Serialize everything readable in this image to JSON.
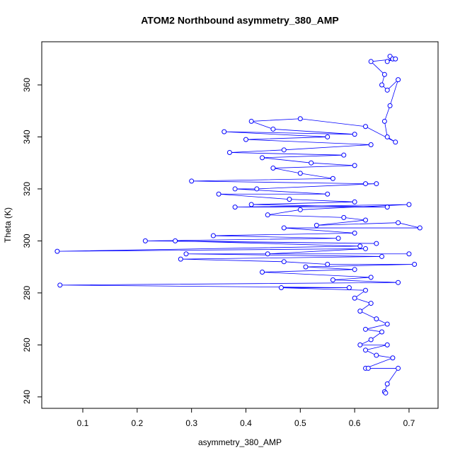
{
  "chart_data": {
    "type": "line",
    "markers": "circle",
    "title": "ATOM2 Northbound asymmetry_380_AMP",
    "x_label": "asymmetry_380_AMP",
    "y_label": "Theta (K)",
    "color": "#0000ff",
    "xlim": [
      0.0245,
      0.7534
    ],
    "ylim": [
      235.6,
      376.6
    ],
    "xticks": [
      0.1,
      0.2,
      0.3,
      0.4,
      0.5,
      0.6,
      0.7
    ],
    "yticks": [
      240,
      260,
      280,
      300,
      320,
      340,
      360
    ],
    "x": [
      0.665,
      0.67,
      0.66,
      0.675,
      0.63,
      0.655,
      0.65,
      0.66,
      0.68,
      0.665,
      0.655,
      0.66,
      0.675,
      0.62,
      0.5,
      0.41,
      0.45,
      0.6,
      0.36,
      0.55,
      0.4,
      0.63,
      0.47,
      0.37,
      0.58,
      0.43,
      0.52,
      0.6,
      0.45,
      0.5,
      0.56,
      0.3,
      0.62,
      0.64,
      0.42,
      0.38,
      0.55,
      0.35,
      0.48,
      0.6,
      0.41,
      0.66,
      0.38,
      0.7,
      0.5,
      0.44,
      0.58,
      0.62,
      0.53,
      0.68,
      0.72,
      0.47,
      0.6,
      0.34,
      0.57,
      0.215,
      0.64,
      0.27,
      0.61,
      0.053,
      0.62,
      0.44,
      0.7,
      0.29,
      0.65,
      0.28,
      0.47,
      0.55,
      0.71,
      0.51,
      0.6,
      0.43,
      0.63,
      0.56,
      0.68,
      0.058,
      0.59,
      0.465,
      0.62,
      0.6,
      0.63,
      0.61,
      0.64,
      0.66,
      0.62,
      0.65,
      0.63,
      0.61,
      0.66,
      0.62,
      0.64,
      0.67,
      0.62,
      0.625,
      0.68,
      0.66,
      0.655,
      0.657
    ],
    "values": [
      371,
      370,
      369,
      370,
      369,
      364,
      360,
      358,
      362,
      352,
      346,
      340,
      338,
      344,
      347,
      346,
      343,
      341,
      342,
      340,
      339,
      337,
      335,
      334,
      333,
      332,
      330,
      329,
      328,
      326,
      324,
      323,
      322,
      322,
      320,
      320,
      318,
      318,
      316,
      315,
      314,
      313,
      313,
      314,
      312,
      310,
      309,
      308,
      306,
      307,
      305,
      305,
      303,
      302,
      301,
      300,
      299,
      300,
      298,
      296,
      297,
      295,
      295,
      295,
      294,
      293,
      292,
      291,
      291,
      290,
      289,
      288,
      286,
      285,
      284,
      283,
      282,
      282,
      281,
      278,
      276,
      273,
      270,
      268,
      266,
      265,
      262,
      260,
      260,
      258,
      256,
      255,
      251,
      251,
      251,
      245,
      242,
      241.5
    ]
  }
}
